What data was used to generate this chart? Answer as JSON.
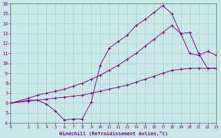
{
  "xlabel": "Windchill (Refroidissement éolien,°C)",
  "bg_color": "#c8e8e8",
  "line_color": "#880088",
  "xlim": [
    0,
    23
  ],
  "ylim": [
    4,
    16
  ],
  "xticks": [
    0,
    2,
    3,
    4,
    5,
    6,
    7,
    8,
    9,
    10,
    11,
    12,
    13,
    14,
    15,
    16,
    17,
    18,
    19,
    20,
    21,
    22,
    23
  ],
  "yticks": [
    4,
    5,
    6,
    7,
    8,
    9,
    10,
    11,
    12,
    13,
    14,
    15,
    16
  ],
  "line1_x": [
    0,
    2,
    3,
    4,
    5,
    6,
    7,
    8,
    9,
    10,
    11,
    12,
    13,
    14,
    15,
    16,
    17,
    18,
    19,
    20,
    21,
    22,
    23
  ],
  "line1_y": [
    6.0,
    6.3,
    6.3,
    5.9,
    5.2,
    4.3,
    4.4,
    4.4,
    6.1,
    9.8,
    11.5,
    12.2,
    12.8,
    13.8,
    14.4,
    15.1,
    15.8,
    15.0,
    13.0,
    13.1,
    11.0,
    9.5,
    9.5
  ],
  "line2_x": [
    0,
    2,
    3,
    4,
    5,
    6,
    7,
    8,
    9,
    10,
    11,
    12,
    13,
    14,
    15,
    16,
    17,
    18,
    19,
    20,
    21,
    22,
    23
  ],
  "line2_y": [
    6.0,
    6.2,
    6.3,
    6.4,
    6.5,
    6.6,
    6.7,
    6.8,
    7.0,
    7.2,
    7.4,
    7.6,
    7.8,
    8.1,
    8.4,
    8.7,
    9.0,
    9.3,
    9.4,
    9.5,
    9.5,
    9.5,
    9.5
  ],
  "line3_x": [
    0,
    2,
    3,
    4,
    5,
    6,
    7,
    8,
    9,
    10,
    11,
    12,
    13,
    14,
    15,
    16,
    17,
    18,
    19,
    20,
    21,
    22,
    23
  ],
  "line3_y": [
    6.0,
    6.5,
    6.8,
    7.0,
    7.2,
    7.4,
    7.7,
    8.0,
    8.4,
    8.8,
    9.3,
    9.8,
    10.4,
    11.0,
    11.7,
    12.4,
    13.1,
    13.8,
    13.0,
    11.0,
    10.8,
    11.2,
    10.8
  ]
}
